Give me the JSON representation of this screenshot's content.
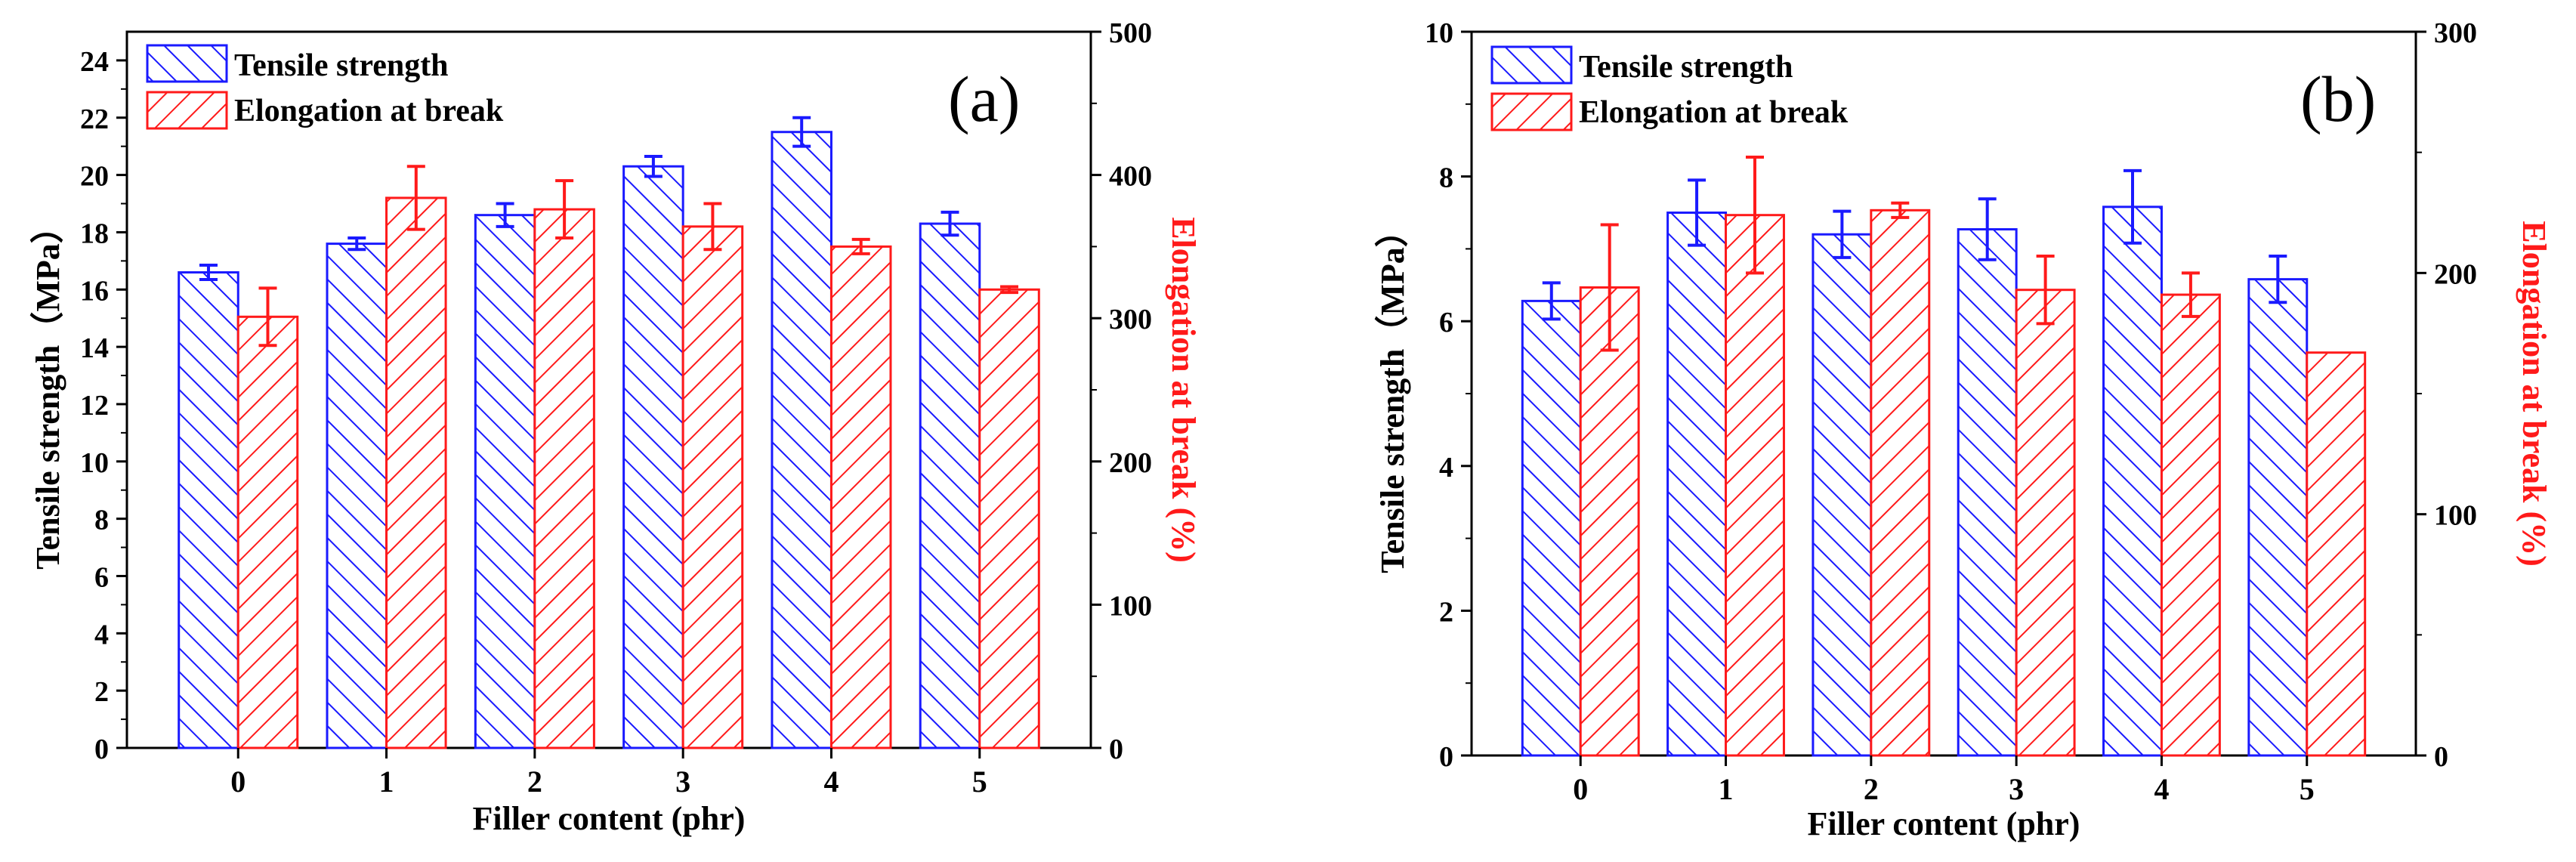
{
  "colors": {
    "tensile": "#1a1aff",
    "elongation": "#ff1a1a",
    "axis": "#000000"
  },
  "chart_data": [
    {
      "type": "bar",
      "panel_label": "(a)",
      "xlabel": "Filler content (phr)",
      "ylabel_left": "Tensile strength（MPa）",
      "ylabel_right": "Elongation at break (%)",
      "categories": [
        "0",
        "1",
        "2",
        "3",
        "4",
        "5"
      ],
      "ylim_left": [
        0,
        25
      ],
      "ylim_right": [
        0,
        500
      ],
      "yticks_left": [
        "0",
        "2",
        "4",
        "6",
        "8",
        "10",
        "12",
        "14",
        "16",
        "18",
        "20",
        "22",
        "24"
      ],
      "yticks_right": [
        "0",
        "100",
        "200",
        "300",
        "400",
        "500"
      ],
      "legend_position": "top-left",
      "grid": false,
      "series": [
        {
          "name": "Tensile strength",
          "axis": "left",
          "hatch": "forward",
          "values": [
            16.6,
            17.6,
            18.6,
            20.3,
            21.5,
            18.3
          ],
          "errors": [
            0.25,
            0.2,
            0.4,
            0.35,
            0.5,
            0.4
          ]
        },
        {
          "name": "Elongation at break",
          "axis": "right",
          "hatch": "backward",
          "values": [
            301,
            384,
            376,
            364,
            350,
            320
          ],
          "errors": [
            20,
            22,
            20,
            16,
            5,
            2
          ]
        }
      ]
    },
    {
      "type": "bar",
      "panel_label": "(b)",
      "xlabel": "Filler content (phr)",
      "ylabel_left": "Tensile strength（MPa）",
      "ylabel_right": "Elongation at break (%)",
      "categories": [
        "0",
        "1",
        "2",
        "3",
        "4",
        "5"
      ],
      "ylim_left": [
        0,
        10
      ],
      "ylim_right": [
        0,
        300
      ],
      "yticks_left": [
        "0",
        "2",
        "4",
        "6",
        "8",
        "10"
      ],
      "yticks_right": [
        "0",
        "100",
        "200",
        "300"
      ],
      "legend_position": "top-left",
      "grid": false,
      "series": [
        {
          "name": "Tensile strength",
          "axis": "left",
          "hatch": "forward",
          "values": [
            6.28,
            7.5,
            7.2,
            7.27,
            7.58,
            6.58
          ],
          "errors": [
            0.25,
            0.45,
            0.32,
            0.42,
            0.5,
            0.32
          ]
        },
        {
          "name": "Elongation at break",
          "axis": "right",
          "hatch": "backward",
          "values": [
            194,
            224,
            226,
            193,
            191,
            167
          ],
          "errors": [
            26,
            24,
            3,
            14,
            9,
            0
          ]
        }
      ]
    }
  ]
}
